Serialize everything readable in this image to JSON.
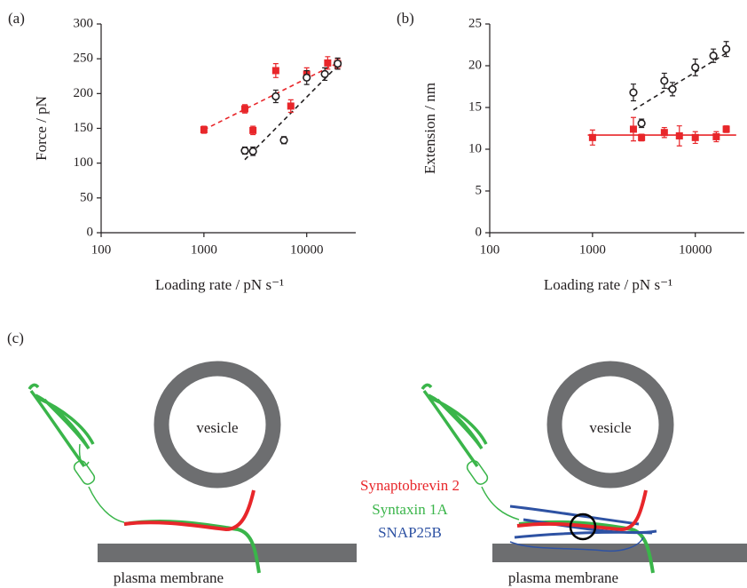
{
  "chart_data": [
    {
      "type": "scatter",
      "panel": "(a)",
      "x_label": "Loading rate / pN s⁻¹",
      "y_label": "Force / pN",
      "log_x": true,
      "xlim": [
        100,
        30000
      ],
      "xticks": [
        100,
        1000,
        10000
      ],
      "ylim": [
        0,
        300
      ],
      "yticks": [
        0,
        50,
        100,
        150,
        200,
        250,
        300
      ],
      "series": [
        {
          "color": "#e8262a",
          "marker": "square",
          "x": [
            1000,
            2500,
            3000,
            5000,
            7000,
            10000,
            16000,
            20000
          ],
          "values": [
            148,
            178,
            147,
            233,
            182,
            228,
            244,
            243
          ],
          "errors": [
            5,
            6,
            6,
            10,
            9,
            9,
            9,
            7
          ]
        },
        {
          "color": "#231f20",
          "marker": "circle",
          "x": [
            2500,
            3000,
            5000,
            6000,
            10000,
            15000,
            20000
          ],
          "values": [
            118,
            117,
            196,
            133,
            223,
            228,
            243
          ],
          "errors": [
            5,
            6,
            9,
            5,
            10,
            9,
            8
          ]
        }
      ],
      "fits": [
        {
          "color": "#e8262a",
          "x": [
            1000,
            20000
          ],
          "values": [
            148,
            244
          ]
        },
        {
          "color": "#231f20",
          "x": [
            2500,
            20000
          ],
          "values": [
            105,
            240
          ]
        }
      ]
    },
    {
      "type": "scatter",
      "panel": "(b)",
      "x_label": "Loading rate / pN s⁻¹",
      "y_label": "Extension / nm",
      "log_x": true,
      "xlim": [
        100,
        30000
      ],
      "xticks": [
        100,
        1000,
        10000
      ],
      "ylim": [
        0,
        25
      ],
      "yticks": [
        0,
        5,
        10,
        15,
        20,
        25
      ],
      "series": [
        {
          "color": "#e8262a",
          "marker": "square",
          "x": [
            1000,
            2500,
            3000,
            5000,
            7000,
            10000,
            16000,
            20000
          ],
          "values": [
            11.4,
            12.4,
            11.4,
            12.0,
            11.6,
            11.4,
            11.5,
            12.4
          ],
          "errors": [
            0.9,
            1.4,
            0.4,
            0.6,
            1.2,
            0.7,
            0.6,
            0.4
          ]
        },
        {
          "color": "#231f20",
          "marker": "circle",
          "x": [
            2500,
            3000,
            5000,
            6000,
            10000,
            15000,
            20000
          ],
          "values": [
            16.8,
            13.1,
            18.2,
            17.2,
            19.8,
            21.2,
            22.0
          ],
          "errors": [
            1.0,
            0.5,
            0.9,
            0.8,
            1.0,
            0.8,
            0.9
          ]
        }
      ],
      "fits": [
        {
          "color": "#e8262a",
          "solid": true,
          "x": [
            900,
            25000
          ],
          "values": [
            11.7,
            11.7
          ]
        },
        {
          "color": "#231f20",
          "x": [
            2500,
            20000
          ],
          "values": [
            14.7,
            21.5
          ]
        }
      ]
    }
  ],
  "diagram": {
    "label": "(c)",
    "vesicles": [
      "vesicle",
      "vesicle"
    ],
    "proteins": [
      {
        "name": "Synaptobrevin 2",
        "color": "#e8262a"
      },
      {
        "name": "Syntaxin 1A",
        "color": "#3ab54a"
      },
      {
        "name": "SNAP25B",
        "color": "#2e52a3"
      }
    ],
    "membranes": [
      "plasma membrane",
      "plasma membrane"
    ]
  }
}
